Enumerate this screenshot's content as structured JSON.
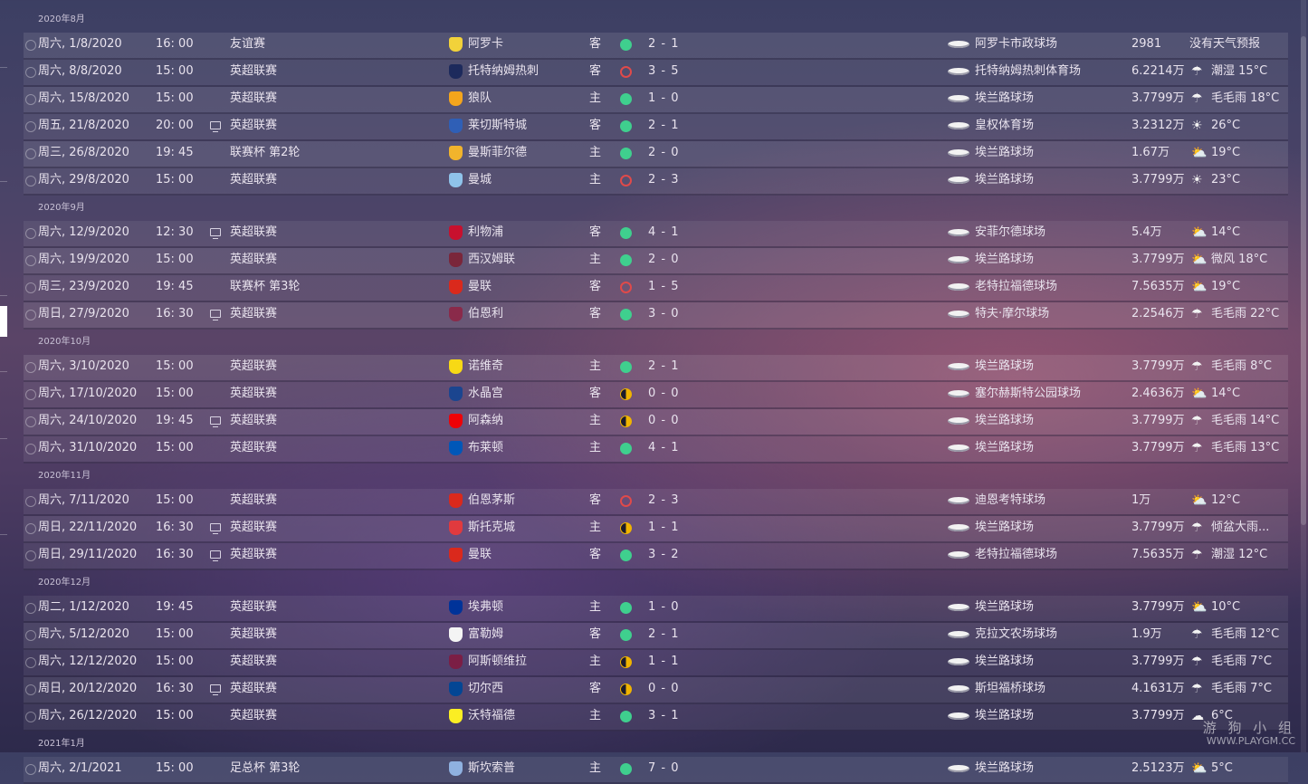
{
  "colors": {
    "win": "#3fcf8e",
    "loss": "#e04a4a",
    "draw": "#f0b400"
  },
  "groups": [
    {
      "month": "2020年8月",
      "fixtures": [
        {
          "date": "周六, 1/8/2020",
          "time": "16: 00",
          "tv": false,
          "competition": "友谊赛",
          "opponent": "阿罗卡",
          "crest": "#f2d23a",
          "venue": "客",
          "result": "W",
          "score": "2 - 1",
          "stadium": "阿罗卡市政球场",
          "attendance": "2981",
          "weather_icon": "",
          "weather": "没有天气预报"
        },
        {
          "date": "周六, 8/8/2020",
          "time": "15: 00",
          "tv": false,
          "competition": "英超联赛",
          "opponent": "托特纳姆热刺",
          "crest": "#1d2a5c",
          "venue": "客",
          "result": "L",
          "score": "3 - 5",
          "stadium": "托特纳姆热刺体育场",
          "attendance": "6.2214万",
          "weather_icon": "cloud-rain-icon",
          "weather": "潮湿 15°C"
        },
        {
          "date": "周六, 15/8/2020",
          "time": "15: 00",
          "tv": false,
          "competition": "英超联赛",
          "opponent": "狼队",
          "crest": "#f4a51c",
          "venue": "主",
          "result": "W",
          "score": "1 - 0",
          "stadium": "埃兰路球场",
          "attendance": "3.7799万",
          "weather_icon": "cloud-rain-icon",
          "weather": "毛毛雨 18°C"
        },
        {
          "date": "周五, 21/8/2020",
          "time": "20: 00",
          "tv": true,
          "competition": "英超联赛",
          "opponent": "莱切斯特城",
          "crest": "#2f5fb6",
          "venue": "客",
          "result": "W",
          "score": "2 - 1",
          "stadium": "皇权体育场",
          "attendance": "3.2312万",
          "weather_icon": "sun-icon",
          "weather": "26°C"
        },
        {
          "date": "周三, 26/8/2020",
          "time": "19: 45",
          "tv": false,
          "competition": "联赛杯 第2轮",
          "opponent": "曼斯菲尔德",
          "crest": "#f1b42c",
          "venue": "主",
          "result": "W",
          "score": "2 - 0",
          "stadium": "埃兰路球场",
          "attendance": "1.67万",
          "weather_icon": "partly-cloudy-icon",
          "weather": "19°C"
        },
        {
          "date": "周六, 29/8/2020",
          "time": "15: 00",
          "tv": false,
          "competition": "英超联赛",
          "opponent": "曼城",
          "crest": "#8fc3ea",
          "venue": "主",
          "result": "L",
          "score": "2 - 3",
          "stadium": "埃兰路球场",
          "attendance": "3.7799万",
          "weather_icon": "sun-icon",
          "weather": "23°C"
        }
      ]
    },
    {
      "month": "2020年9月",
      "fixtures": [
        {
          "date": "周六, 12/9/2020",
          "time": "12: 30",
          "tv": true,
          "competition": "英超联赛",
          "opponent": "利物浦",
          "crest": "#c8102e",
          "venue": "客",
          "result": "W",
          "score": "4 - 1",
          "stadium": "安菲尔德球场",
          "attendance": "5.4万",
          "weather_icon": "partly-cloudy-icon",
          "weather": "14°C"
        },
        {
          "date": "周六, 19/9/2020",
          "time": "15: 00",
          "tv": false,
          "competition": "英超联赛",
          "opponent": "西汉姆联",
          "crest": "#7a263a",
          "venue": "主",
          "result": "W",
          "score": "2 - 0",
          "stadium": "埃兰路球场",
          "attendance": "3.7799万",
          "weather_icon": "partly-cloudy-icon",
          "weather": "微风 18°C"
        },
        {
          "date": "周三, 23/9/2020",
          "time": "19: 45",
          "tv": false,
          "competition": "联赛杯 第3轮",
          "opponent": "曼联",
          "crest": "#da291c",
          "venue": "客",
          "result": "L",
          "score": "1 - 5",
          "stadium": "老特拉福德球场",
          "attendance": "7.5635万",
          "weather_icon": "partly-cloudy-icon",
          "weather": "19°C"
        },
        {
          "date": "周日, 27/9/2020",
          "time": "16: 30",
          "tv": true,
          "competition": "英超联赛",
          "opponent": "伯恩利",
          "crest": "#8a2a4a",
          "venue": "客",
          "result": "W",
          "score": "3 - 0",
          "stadium": "特夫·摩尔球场",
          "attendance": "2.2546万",
          "weather_icon": "cloud-rain-icon",
          "weather": "毛毛雨 22°C"
        }
      ]
    },
    {
      "month": "2020年10月",
      "fixtures": [
        {
          "date": "周六, 3/10/2020",
          "time": "15: 00",
          "tv": false,
          "competition": "英超联赛",
          "opponent": "诺维奇",
          "crest": "#f7d915",
          "venue": "主",
          "result": "W",
          "score": "2 - 1",
          "stadium": "埃兰路球场",
          "attendance": "3.7799万",
          "weather_icon": "cloud-rain-icon",
          "weather": "毛毛雨 8°C"
        },
        {
          "date": "周六, 17/10/2020",
          "time": "15: 00",
          "tv": false,
          "competition": "英超联赛",
          "opponent": "水晶宫",
          "crest": "#1b458f",
          "venue": "客",
          "result": "D",
          "score": "0 - 0",
          "stadium": "塞尔赫斯特公园球场",
          "attendance": "2.4636万",
          "weather_icon": "partly-cloudy-icon",
          "weather": "14°C"
        },
        {
          "date": "周六, 24/10/2020",
          "time": "19: 45",
          "tv": true,
          "competition": "英超联赛",
          "opponent": "阿森纳",
          "crest": "#ef0107",
          "venue": "主",
          "result": "D",
          "score": "0 - 0",
          "stadium": "埃兰路球场",
          "attendance": "3.7799万",
          "weather_icon": "cloud-rain-icon",
          "weather": "毛毛雨 14°C"
        },
        {
          "date": "周六, 31/10/2020",
          "time": "15: 00",
          "tv": false,
          "competition": "英超联赛",
          "opponent": "布莱顿",
          "crest": "#0057b8",
          "venue": "主",
          "result": "W",
          "score": "4 - 1",
          "stadium": "埃兰路球场",
          "attendance": "3.7799万",
          "weather_icon": "cloud-rain-icon",
          "weather": "毛毛雨 13°C"
        }
      ]
    },
    {
      "month": "2020年11月",
      "fixtures": [
        {
          "date": "周六, 7/11/2020",
          "time": "15: 00",
          "tv": false,
          "competition": "英超联赛",
          "opponent": "伯恩茅斯",
          "crest": "#da291c",
          "venue": "客",
          "result": "L",
          "score": "2 - 3",
          "stadium": "迪恩考特球场",
          "attendance": "1万",
          "weather_icon": "partly-cloudy-icon",
          "weather": "12°C"
        },
        {
          "date": "周日, 22/11/2020",
          "time": "16: 30",
          "tv": true,
          "competition": "英超联赛",
          "opponent": "斯托克城",
          "crest": "#e03a3e",
          "venue": "主",
          "result": "D",
          "score": "1 - 1",
          "stadium": "埃兰路球场",
          "attendance": "3.7799万",
          "weather_icon": "cloud-rain-icon",
          "weather": "倾盆大雨..."
        },
        {
          "date": "周日, 29/11/2020",
          "time": "16: 30",
          "tv": true,
          "competition": "英超联赛",
          "opponent": "曼联",
          "crest": "#da291c",
          "venue": "客",
          "result": "W",
          "score": "3 - 2",
          "stadium": "老特拉福德球场",
          "attendance": "7.5635万",
          "weather_icon": "cloud-rain-icon",
          "weather": "潮湿 12°C"
        }
      ]
    },
    {
      "month": "2020年12月",
      "fixtures": [
        {
          "date": "周二, 1/12/2020",
          "time": "19: 45",
          "tv": false,
          "competition": "英超联赛",
          "opponent": "埃弗顿",
          "crest": "#003399",
          "venue": "主",
          "result": "W",
          "score": "1 - 0",
          "stadium": "埃兰路球场",
          "attendance": "3.7799万",
          "weather_icon": "partly-cloudy-icon",
          "weather": "10°C"
        },
        {
          "date": "周六, 5/12/2020",
          "time": "15: 00",
          "tv": false,
          "competition": "英超联赛",
          "opponent": "富勒姆",
          "crest": "#f4f4f4",
          "venue": "客",
          "result": "W",
          "score": "2 - 1",
          "stadium": "克拉文农场球场",
          "attendance": "1.9万",
          "weather_icon": "cloud-rain-icon",
          "weather": "毛毛雨 12°C"
        },
        {
          "date": "周六, 12/12/2020",
          "time": "15: 00",
          "tv": false,
          "competition": "英超联赛",
          "opponent": "阿斯顿维拉",
          "crest": "#7b1e45",
          "venue": "主",
          "result": "D",
          "score": "1 - 1",
          "stadium": "埃兰路球场",
          "attendance": "3.7799万",
          "weather_icon": "cloud-rain-icon",
          "weather": "毛毛雨 7°C"
        },
        {
          "date": "周日, 20/12/2020",
          "time": "16: 30",
          "tv": true,
          "competition": "英超联赛",
          "opponent": "切尔西",
          "crest": "#034694",
          "venue": "客",
          "result": "D",
          "score": "0 - 0",
          "stadium": "斯坦福桥球场",
          "attendance": "4.1631万",
          "weather_icon": "cloud-rain-icon",
          "weather": "毛毛雨 7°C"
        },
        {
          "date": "周六, 26/12/2020",
          "time": "15: 00",
          "tv": false,
          "competition": "英超联赛",
          "opponent": "沃特福德",
          "crest": "#fbee23",
          "venue": "主",
          "result": "W",
          "score": "3 - 1",
          "stadium": "埃兰路球场",
          "attendance": "3.7799万",
          "weather_icon": "cloud-icon",
          "weather": "6°C"
        }
      ]
    },
    {
      "month": "2021年1月",
      "fixtures": [
        {
          "date": "周六, 2/1/2021",
          "time": "15: 00",
          "tv": false,
          "competition": "足总杯 第3轮",
          "opponent": "斯坎索普",
          "crest": "#8fb1e0",
          "venue": "主",
          "result": "W",
          "score": "7 - 0",
          "stadium": "埃兰路球场",
          "attendance": "2.5123万",
          "weather_icon": "partly-cloudy-icon",
          "weather": "5°C"
        }
      ]
    }
  ],
  "watermark": {
    "line1": "游 狗 小 组",
    "line2": "WWW.PLAYGM.CC"
  }
}
